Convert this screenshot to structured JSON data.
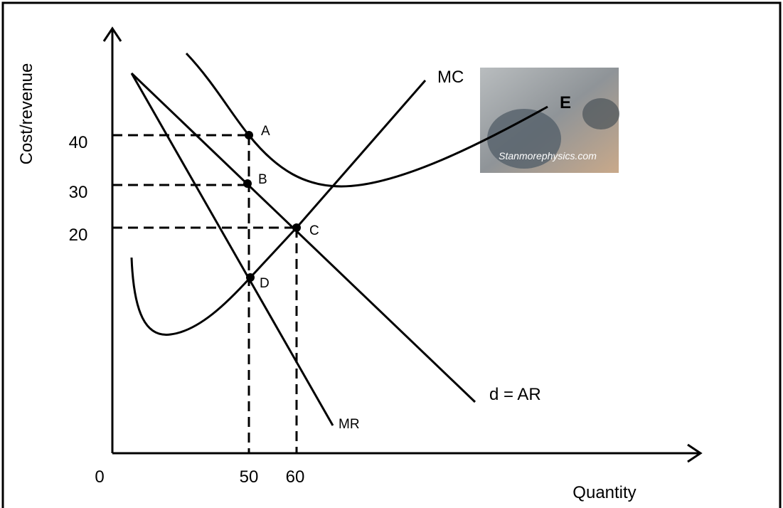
{
  "axes": {
    "y_label": "Cost/revenue",
    "x_label": "Quantity",
    "y_ticks": [
      "40",
      "30",
      "20"
    ],
    "origin": "0",
    "x_ticks": [
      "50",
      "60"
    ]
  },
  "curves": {
    "mc": "MC",
    "ar": "d = AR",
    "mr": "MR"
  },
  "points": [
    "A",
    "B",
    "C",
    "D",
    "E"
  ],
  "watermark": "Stanmorephysics.com"
}
